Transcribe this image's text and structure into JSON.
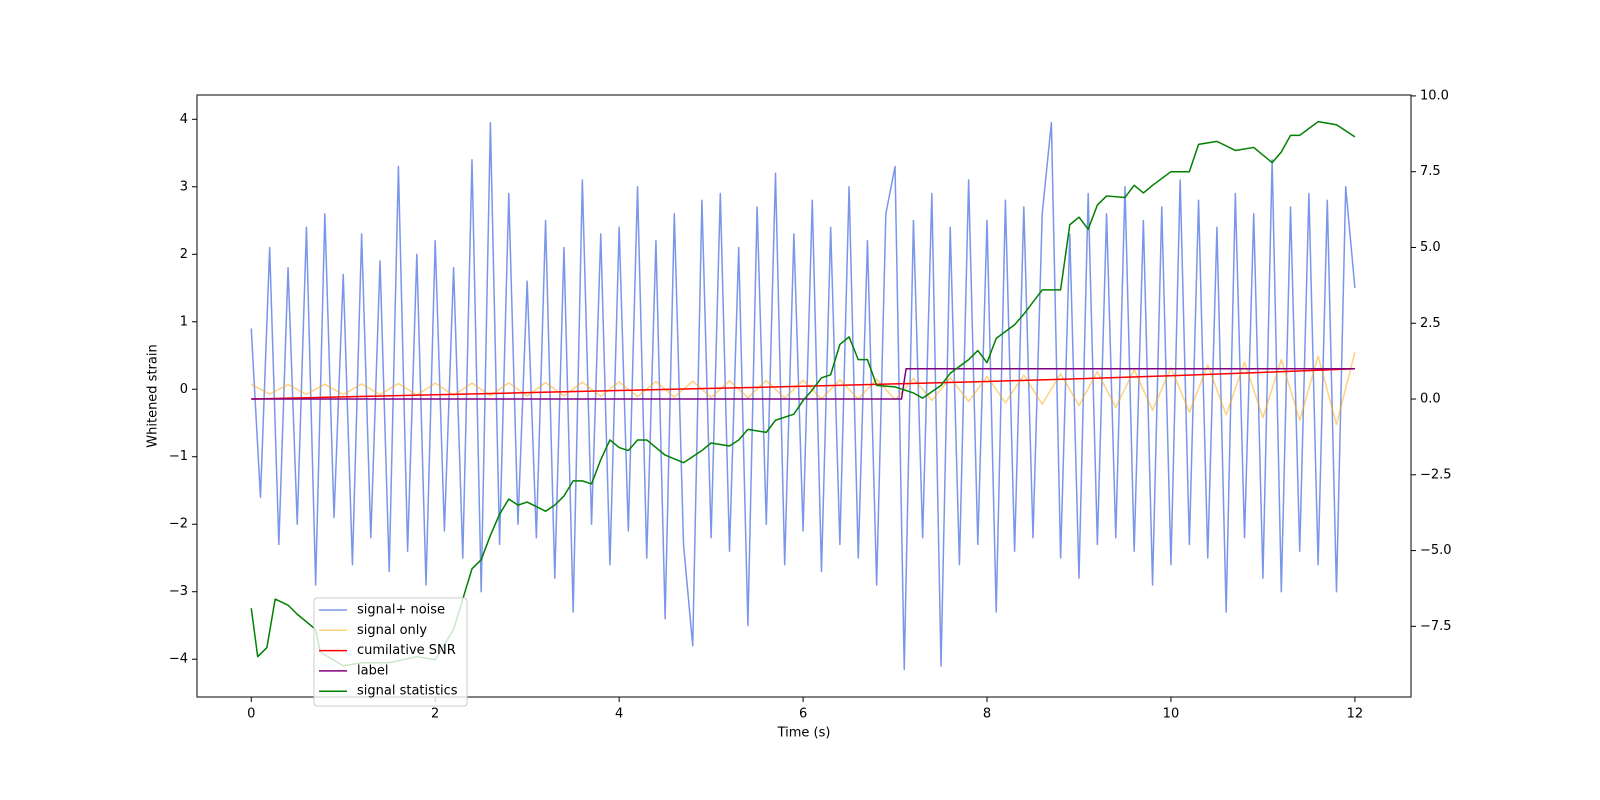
{
  "chart_data": {
    "type": "line",
    "xlabel": "Time (s)",
    "ylabel": "Whitened strain",
    "xlim": [
      -0.59,
      12.61
    ],
    "ylim": [
      -4.56,
      4.36
    ],
    "y2lim": [
      -9.83,
      10.03
    ],
    "xticks": [
      0,
      2,
      4,
      6,
      8,
      10,
      12
    ],
    "yticks": [
      {
        "value": -4,
        "label": "−4"
      },
      {
        "value": -3,
        "label": "−3"
      },
      {
        "value": -2,
        "label": "−2"
      },
      {
        "value": -1,
        "label": "−1"
      },
      0,
      1,
      2,
      3,
      4
    ],
    "y2ticks": [
      {
        "value": -7.5,
        "label": "−7.5"
      },
      {
        "value": -5,
        "label": "−5.0"
      },
      {
        "value": -2.5,
        "label": "−2.5"
      },
      {
        "value": 0,
        "label": "0.0"
      },
      2.5,
      {
        "value": 5,
        "label": "5.0"
      },
      7.5,
      {
        "value": 10,
        "label": "10.0"
      }
    ],
    "legend": "lower left",
    "series": [
      {
        "name": "signal+ noise",
        "color": "#4169e1",
        "alpha": 0.7,
        "x": [
          0,
          0.1,
          0.2,
          0.3,
          0.4,
          0.5,
          0.6,
          0.7,
          0.8,
          0.9,
          1,
          1.1,
          1.2,
          1.3,
          1.4,
          1.5,
          1.6,
          1.7,
          1.8,
          1.9,
          2,
          2.1,
          2.2,
          2.3,
          2.4,
          2.5,
          2.6,
          2.7,
          2.8,
          2.9,
          3,
          3.1,
          3.2,
          3.3,
          3.4,
          3.5,
          3.6,
          3.7,
          3.8,
          3.9,
          4,
          4.1,
          4.2,
          4.3,
          4.4,
          4.5,
          4.6,
          4.7,
          4.8,
          4.9,
          5,
          5.1,
          5.2,
          5.3,
          5.4,
          5.5,
          5.6,
          5.7,
          5.8,
          5.9,
          6,
          6.1,
          6.2,
          6.3,
          6.4,
          6.5,
          6.6,
          6.7,
          6.8,
          6.9,
          7,
          7.1,
          7.2,
          7.3,
          7.4,
          7.5,
          7.6,
          7.7,
          7.8,
          7.9,
          8,
          8.1,
          8.2,
          8.3,
          8.4,
          8.5,
          8.6,
          8.7,
          8.8,
          8.9,
          9,
          9.1,
          9.2,
          9.3,
          9.4,
          9.5,
          9.6,
          9.7,
          9.8,
          9.9,
          10,
          10.1,
          10.2,
          10.3,
          10.4,
          10.5,
          10.6,
          10.7,
          10.8,
          10.9,
          11,
          11.1,
          11.2,
          11.3,
          11.4,
          11.5,
          11.6,
          11.7,
          11.8,
          11.9,
          12
        ],
        "values": [
          0.9,
          -1.6,
          2.1,
          -2.3,
          1.8,
          -2.0,
          2.4,
          -2.9,
          2.6,
          -1.9,
          1.7,
          -2.6,
          2.3,
          -2.2,
          1.9,
          -2.7,
          3.3,
          -2.4,
          2.0,
          -2.9,
          2.2,
          -2.1,
          1.8,
          -2.5,
          3.4,
          -3.0,
          3.95,
          -2.3,
          2.9,
          -2.0,
          1.6,
          -2.2,
          2.5,
          -2.8,
          2.1,
          -3.3,
          3.1,
          -2.0,
          2.3,
          -2.6,
          2.4,
          -2.1,
          3.0,
          -2.5,
          2.2,
          -3.4,
          2.6,
          -2.3,
          -3.8,
          2.8,
          -2.2,
          2.9,
          -2.4,
          2.1,
          -3.5,
          2.7,
          -2.0,
          3.2,
          -2.6,
          2.3,
          -2.1,
          2.8,
          -2.7,
          2.4,
          -2.3,
          3.0,
          -2.5,
          2.2,
          -2.9,
          2.6,
          3.3,
          -4.15,
          2.5,
          -2.2,
          2.9,
          -4.1,
          2.4,
          -2.6,
          3.1,
          -2.3,
          2.5,
          -3.3,
          2.8,
          -2.4,
          2.7,
          -2.2,
          2.6,
          3.95,
          -2.5,
          2.3,
          -2.8,
          2.9,
          -2.3,
          2.6,
          -2.2,
          3.0,
          -2.4,
          2.5,
          -2.9,
          2.7,
          -2.6,
          3.1,
          -2.3,
          2.8,
          -2.5,
          2.4,
          -3.3,
          2.9,
          -2.2,
          2.6,
          -2.8,
          3.4,
          -3.0,
          2.7,
          -2.4,
          2.9,
          -2.6,
          2.8,
          -3.0,
          3.0,
          1.5
        ]
      },
      {
        "name": "signal only",
        "color": "#ffa500",
        "alpha": 0.5,
        "x": [
          0,
          0.2,
          0.4,
          0.6,
          0.8,
          1,
          1.2,
          1.4,
          1.6,
          1.8,
          2,
          2.2,
          2.4,
          2.6,
          2.8,
          3,
          3.2,
          3.4,
          3.6,
          3.8,
          4,
          4.2,
          4.4,
          4.6,
          4.8,
          5,
          5.2,
          5.4,
          5.6,
          5.8,
          6,
          6.2,
          6.4,
          6.6,
          6.8,
          7,
          7.2,
          7.4,
          7.6,
          7.8,
          8,
          8.2,
          8.4,
          8.6,
          8.8,
          9,
          9.2,
          9.4,
          9.6,
          9.8,
          10,
          10.2,
          10.4,
          10.6,
          10.8,
          11,
          11.2,
          11.4,
          11.6,
          11.8,
          12
        ],
        "values": [
          0.07,
          -0.07,
          0.07,
          -0.075,
          0.075,
          -0.08,
          0.08,
          -0.08,
          0.085,
          -0.085,
          0.09,
          -0.09,
          0.09,
          -0.095,
          0.095,
          -0.1,
          0.1,
          -0.1,
          0.105,
          -0.105,
          0.11,
          -0.11,
          0.115,
          -0.115,
          0.12,
          -0.12,
          0.125,
          -0.125,
          0.13,
          -0.13,
          0.135,
          -0.14,
          0.14,
          -0.145,
          0.15,
          -0.155,
          0.16,
          -0.165,
          0.17,
          -0.18,
          0.19,
          -0.2,
          0.21,
          -0.22,
          0.23,
          -0.24,
          0.26,
          -0.27,
          0.29,
          -0.31,
          0.32,
          -0.34,
          0.36,
          -0.38,
          0.4,
          -0.42,
          0.44,
          -0.46,
          0.49,
          -0.52,
          0.55
        ]
      },
      {
        "name": "cumilative SNR",
        "color": "#ff0000",
        "axis": "y2",
        "x": [
          0,
          1,
          2,
          3,
          4,
          5,
          6,
          7,
          8,
          9,
          10,
          11,
          12
        ],
        "values": [
          0,
          0.07,
          0.14,
          0.21,
          0.28,
          0.35,
          0.42,
          0.5,
          0.58,
          0.67,
          0.77,
          0.88,
          1.0
        ]
      },
      {
        "name": "label",
        "color": "#800080",
        "axis": "y2",
        "x": [
          0,
          7.07,
          7.12,
          12
        ],
        "values": [
          0,
          0,
          1,
          1
        ]
      },
      {
        "name": "signal statistics",
        "color": "#008000",
        "axis": "y2",
        "x": [
          0,
          0.07,
          0.17,
          0.26,
          0.4,
          0.5,
          0.7,
          0.75,
          1.0,
          1.2,
          1.5,
          1.8,
          2.0,
          2.2,
          2.3,
          2.4,
          2.5,
          2.6,
          2.7,
          2.8,
          2.9,
          3.0,
          3.2,
          3.3,
          3.4,
          3.5,
          3.6,
          3.7,
          3.8,
          3.9,
          4.0,
          4.1,
          4.2,
          4.3,
          4.5,
          4.7,
          4.9,
          5.0,
          5.2,
          5.3,
          5.4,
          5.6,
          5.7,
          5.9,
          6.0,
          6.1,
          6.2,
          6.3,
          6.4,
          6.5,
          6.6,
          6.7,
          6.8,
          7.0,
          7.2,
          7.3,
          7.5,
          7.6,
          7.8,
          7.9,
          8.0,
          8.1,
          8.3,
          8.4,
          8.6,
          8.8,
          8.9,
          9.0,
          9.1,
          9.2,
          9.3,
          9.5,
          9.6,
          9.7,
          9.8,
          10.0,
          10.2,
          10.3,
          10.5,
          10.7,
          10.9,
          11.1,
          11.2,
          11.3,
          11.4,
          11.6,
          11.8,
          12.0
        ],
        "values": [
          -6.9,
          -8.5,
          -8.2,
          -6.6,
          -6.8,
          -7.1,
          -7.6,
          -8.35,
          -8.8,
          -8.7,
          -8.7,
          -8.5,
          -8.6,
          -7.6,
          -6.6,
          -5.6,
          -5.3,
          -4.5,
          -3.8,
          -3.3,
          -3.5,
          -3.4,
          -3.7,
          -3.5,
          -3.2,
          -2.7,
          -2.7,
          -2.8,
          -2.0,
          -1.35,
          -1.6,
          -1.7,
          -1.35,
          -1.35,
          -1.85,
          -2.1,
          -1.7,
          -1.45,
          -1.55,
          -1.35,
          -1.0,
          -1.1,
          -0.7,
          -0.5,
          -0.05,
          0.3,
          0.7,
          0.8,
          1.8,
          2.05,
          1.3,
          1.3,
          0.45,
          0.4,
          0.2,
          0.03,
          0.45,
          0.85,
          1.3,
          1.6,
          1.2,
          2.0,
          2.45,
          2.8,
          3.6,
          3.6,
          5.75,
          6.0,
          5.6,
          6.4,
          6.7,
          6.65,
          7.05,
          6.8,
          7.05,
          7.5,
          7.5,
          8.4,
          8.5,
          8.2,
          8.3,
          7.8,
          8.15,
          8.7,
          8.7,
          9.15,
          9.05,
          8.65
        ]
      }
    ]
  }
}
